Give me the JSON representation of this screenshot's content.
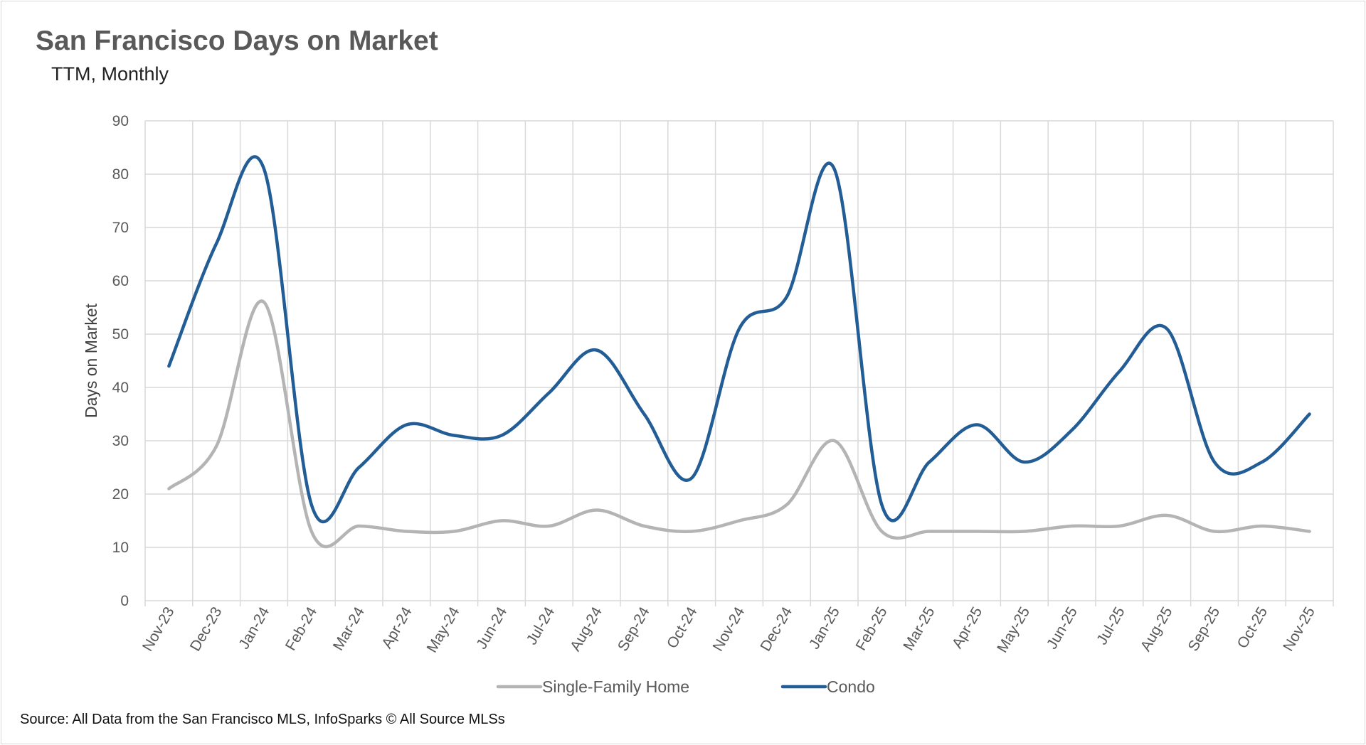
{
  "chart_data": {
    "type": "line",
    "title": "San Francisco Days on Market",
    "subtitle": "TTM, Monthly",
    "xlabel": "",
    "ylabel": "Days on Market",
    "ylim": [
      0,
      90
    ],
    "yticks": [
      0,
      10,
      20,
      30,
      40,
      50,
      60,
      70,
      80,
      90
    ],
    "grid": true,
    "legend_position": "bottom",
    "categories": [
      "Nov-23",
      "Dec-23",
      "Jan-24",
      "Feb-24",
      "Mar-24",
      "Apr-24",
      "May-24",
      "Jun-24",
      "Jul-24",
      "Aug-24",
      "Sep-24",
      "Oct-24",
      "Nov-24",
      "Dec-24",
      "Jan-25",
      "Feb-25",
      "Mar-25",
      "Apr-25",
      "May-25",
      "Jun-25",
      "Jul-25",
      "Aug-25",
      "Sep-25",
      "Oct-25",
      "Nov-25"
    ],
    "series": [
      {
        "name": "Single-Family Home",
        "color": "#b4b4b4",
        "values": [
          21,
          29,
          56,
          13,
          14,
          13,
          13,
          15,
          14,
          17,
          14,
          13,
          15,
          18,
          30,
          13,
          13,
          13,
          13,
          14,
          14,
          16,
          13,
          14,
          13
        ]
      },
      {
        "name": "Condo",
        "color": "#235d96",
        "values": [
          44,
          67,
          81,
          18,
          25,
          33,
          31,
          31,
          39,
          47,
          35,
          23,
          51,
          57,
          81,
          18,
          26,
          33,
          26,
          32,
          43,
          51,
          26,
          26,
          35
        ]
      }
    ],
    "source": "Source: All Data from the San Francisco MLS, InfoSparks © All Source MLSs"
  }
}
